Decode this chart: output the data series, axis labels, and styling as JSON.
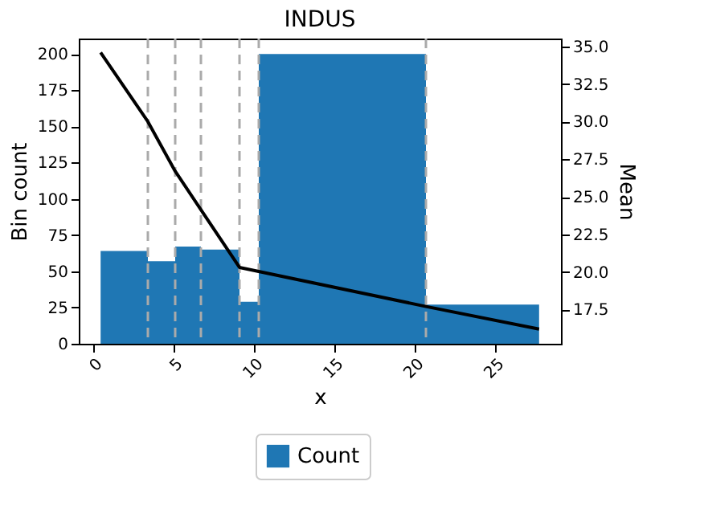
{
  "chart_data": {
    "type": "histogram",
    "title": "INDUS",
    "xlabel": "x",
    "ylabel": "Bin count",
    "y2label": "Mean",
    "bins": [
      0.46,
      3.4,
      5.1,
      6.7,
      9.1,
      10.3,
      20.7,
      27.74
    ],
    "series": [
      {
        "name": "Count",
        "color": "#1f77b4",
        "values": [
          64,
          57,
          67,
          65,
          29,
          200,
          27
        ]
      },
      {
        "type": "line",
        "axis": "y2",
        "color": "#000000",
        "x": [
          0.46,
          3.4,
          5.1,
          9.1,
          20.7,
          27.74
        ],
        "values": [
          34.6,
          30.0,
          26.7,
          20.3,
          17.7,
          16.2
        ]
      }
    ],
    "ref_lines": [
      {
        "axis": "x",
        "value": 3.4,
        "color": "#aaaaaa",
        "line_style": "dashed"
      },
      {
        "axis": "x",
        "value": 5.1,
        "color": "#aaaaaa",
        "line_style": "dashed"
      },
      {
        "axis": "x",
        "value": 6.7,
        "color": "#aaaaaa",
        "line_style": "dashed"
      },
      {
        "axis": "x",
        "value": 9.1,
        "color": "#aaaaaa",
        "line_style": "dashed"
      },
      {
        "axis": "x",
        "value": 10.3,
        "color": "#aaaaaa",
        "line_style": "dashed"
      },
      {
        "axis": "x",
        "value": 20.7,
        "color": "#aaaaaa",
        "line_style": "dashed"
      }
    ],
    "xlim": [
      -0.9,
      29.1
    ],
    "xticks": [
      0,
      5,
      10,
      15,
      20,
      25
    ],
    "ylim": [
      0,
      210.6
    ],
    "yticks": [
      0,
      25,
      50,
      75,
      100,
      125,
      150,
      175,
      200
    ],
    "y2lim": [
      15.22,
      35.53
    ],
    "y2ticks": [
      17.5,
      {
        "value": 20,
        "label": "20.0"
      },
      22.5,
      {
        "value": 25,
        "label": "25.0"
      },
      27.5,
      {
        "value": 30,
        "label": "30.0"
      },
      32.5,
      {
        "value": 35,
        "label": "35.0"
      }
    ],
    "grid": false,
    "legend": "bottom",
    "marker": "none",
    "line_style": "solid"
  }
}
